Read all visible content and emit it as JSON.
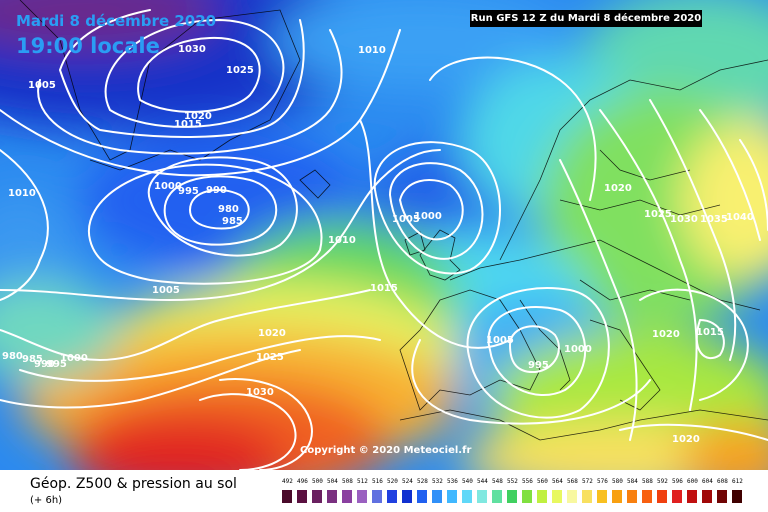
{
  "header": {
    "date": "Mardi 8 décembre 2020",
    "time": "19:00 locale",
    "run": "Run GFS 12 Z du Mardi 8 décembre 2020",
    "copyright": "Copyright © 2020 Meteociel.fr"
  },
  "legend": {
    "title": "Géop. Z500 & pression au sol",
    "subtitle": "(+ 6h)",
    "scale": [
      {
        "value": "492",
        "color": "#4a0a2a"
      },
      {
        "value": "496",
        "color": "#5a1040"
      },
      {
        "value": "500",
        "color": "#6a2060"
      },
      {
        "value": "504",
        "color": "#7a3080"
      },
      {
        "value": "508",
        "color": "#8a40a0"
      },
      {
        "value": "512",
        "color": "#9a60c0"
      },
      {
        "value": "516",
        "color": "#6070e0"
      },
      {
        "value": "520",
        "color": "#2040e0"
      },
      {
        "value": "524",
        "color": "#1030d0"
      },
      {
        "value": "528",
        "color": "#2060f0"
      },
      {
        "value": "532",
        "color": "#3090f8"
      },
      {
        "value": "536",
        "color": "#40b8ff"
      },
      {
        "value": "540",
        "color": "#60d8f8"
      },
      {
        "value": "544",
        "color": "#80e8e0"
      },
      {
        "value": "548",
        "color": "#60e0a0"
      },
      {
        "value": "552",
        "color": "#40d060"
      },
      {
        "value": "556",
        "color": "#80e040"
      },
      {
        "value": "560",
        "color": "#c0f040"
      },
      {
        "value": "564",
        "color": "#e8f860"
      },
      {
        "value": "568",
        "color": "#f8f8a0"
      },
      {
        "value": "572",
        "color": "#f8e060"
      },
      {
        "value": "576",
        "color": "#f8c020"
      },
      {
        "value": "580",
        "color": "#f8a010"
      },
      {
        "value": "584",
        "color": "#f88010"
      },
      {
        "value": "588",
        "color": "#f86010"
      },
      {
        "value": "592",
        "color": "#f04010"
      },
      {
        "value": "596",
        "color": "#e02020"
      },
      {
        "value": "600",
        "color": "#c01010"
      },
      {
        "value": "604",
        "color": "#a00808"
      },
      {
        "value": "608",
        "color": "#700404"
      },
      {
        "value": "612",
        "color": "#400000"
      }
    ]
  },
  "pressure_labels": [
    {
      "text": "1030"
    },
    {
      "text": "1025"
    },
    {
      "text": "1020"
    },
    {
      "text": "1015"
    },
    {
      "text": "1005"
    },
    {
      "text": "1010"
    },
    {
      "text": "1010"
    },
    {
      "text": "1000"
    },
    {
      "text": "995"
    },
    {
      "text": "990"
    },
    {
      "text": "980"
    },
    {
      "text": "985"
    },
    {
      "text": "1010"
    },
    {
      "text": "1005"
    },
    {
      "text": "1005"
    },
    {
      "text": "1000"
    },
    {
      "text": "1015"
    },
    {
      "text": "1020"
    },
    {
      "text": "1025"
    },
    {
      "text": "1030"
    },
    {
      "text": "980"
    },
    {
      "text": "985"
    },
    {
      "text": "990"
    },
    {
      "text": "995"
    },
    {
      "text": "1000"
    },
    {
      "text": "1005"
    },
    {
      "text": "995"
    },
    {
      "text": "1000"
    },
    {
      "text": "1020"
    },
    {
      "text": "1025"
    },
    {
      "text": "1030"
    },
    {
      "text": "1035"
    },
    {
      "text": "1040"
    },
    {
      "text": "1020"
    },
    {
      "text": "1015"
    },
    {
      "text": "1020"
    }
  ]
}
